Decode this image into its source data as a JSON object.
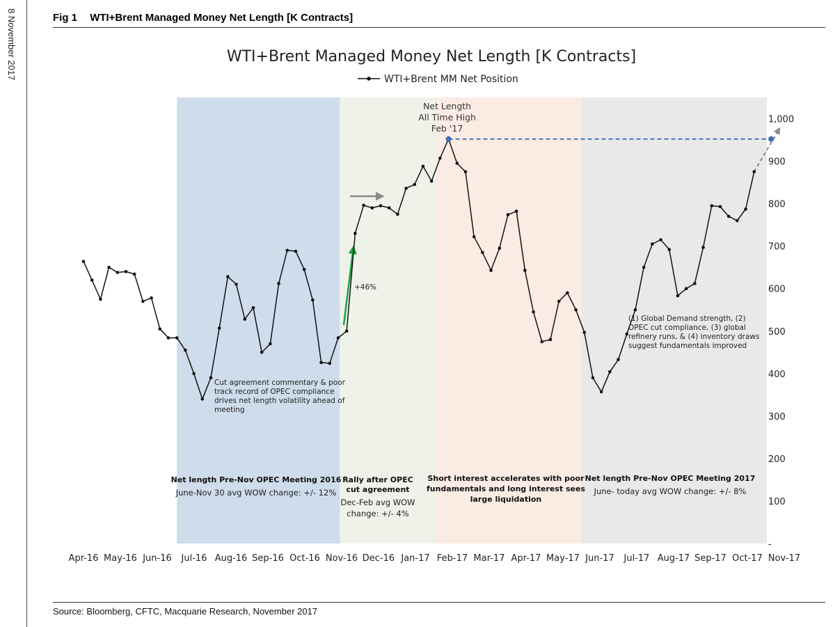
{
  "page": {
    "side_date": "8 November 2017",
    "fig_label": "Fig 1",
    "fig_title": "WTI+Brent Managed Money Net Length [K Contracts]",
    "source": "Source: Bloomberg, CFTC, Macquarie Research, November 2017"
  },
  "chart_data": {
    "type": "line",
    "title": "WTI+Brent Managed Money Net Length [K Contracts]",
    "xlabel": "",
    "ylabel": "",
    "ylim": [
      0,
      1000
    ],
    "y_ticks": [
      "-",
      "100",
      "200",
      "300",
      "400",
      "500",
      "600",
      "700",
      "800",
      "900",
      "1,000"
    ],
    "y_axis_side": "right",
    "x_tick_labels": [
      "Apr-16",
      "May-16",
      "Jun-16",
      "Jul-16",
      "Aug-16",
      "Sep-16",
      "Oct-16",
      "Nov-16",
      "Dec-16",
      "Jan-17",
      "Feb-17",
      "Mar-17",
      "Apr-17",
      "May-17",
      "Jun-17",
      "Jul-17",
      "Aug-17",
      "Sep-17",
      "Oct-17",
      "Nov-17"
    ],
    "grid": false,
    "legend": {
      "position": "top",
      "entries": [
        "WTI+Brent MM Net Position"
      ]
    },
    "series": [
      {
        "name": "WTI+Brent MM Net Position",
        "color": "#111111",
        "x_weeks": [
          0,
          1,
          2,
          3,
          4,
          5,
          6,
          7,
          8,
          9,
          10,
          11,
          12,
          13,
          14,
          15,
          16,
          17,
          18,
          19,
          20,
          21,
          22,
          23,
          24,
          25,
          26,
          27,
          28,
          29,
          30,
          31,
          32,
          33,
          34,
          35,
          36,
          37,
          38,
          39,
          40,
          41,
          42,
          43,
          44,
          45,
          46,
          47,
          48,
          49,
          50,
          51,
          52,
          53,
          54,
          55,
          56,
          57,
          58,
          59,
          60,
          61,
          62,
          63,
          64,
          65,
          66,
          67,
          68,
          69,
          70,
          71,
          72,
          73,
          74,
          75,
          76,
          77,
          78,
          79,
          80,
          81
        ],
        "values": [
          664,
          620,
          575,
          650,
          638,
          640,
          634,
          570,
          578,
          505,
          484,
          484,
          455,
          400,
          340,
          390,
          507,
          628,
          610,
          528,
          555,
          450,
          470,
          612,
          690,
          688,
          645,
          573,
          426,
          424,
          484,
          500,
          730,
          796,
          790,
          795,
          790,
          775,
          836,
          845,
          888,
          853,
          907,
          952,
          895,
          875,
          722,
          685,
          643,
          695,
          774,
          782,
          643,
          545,
          475,
          480,
          570,
          590,
          550,
          497,
          390,
          357,
          404,
          433,
          493,
          550,
          650,
          705,
          715,
          692,
          583,
          600,
          612,
          697,
          795,
          793,
          770,
          760,
          787,
          875,
          null,
          null
        ],
        "peak": {
          "week": 43,
          "value": 952,
          "label_lines": [
            "Net Length",
            "All Time High",
            "Feb '17"
          ]
        },
        "projection": {
          "from_week": 79,
          "from_value": 875,
          "to_week": 81,
          "to_value": 952
        },
        "ath_line": {
          "from_week": 43,
          "to_week": 81,
          "value": 952,
          "color": "#3f6eb5"
        }
      }
    ],
    "regions": [
      {
        "name": "pre-nov-opec-2016",
        "color": "#cfdcec",
        "title": "Net length Pre-Nov OPEC Meeting 2016",
        "lines": [
          "June-Nov 30 avg WOW change: +/- 12%"
        ]
      },
      {
        "name": "rally-after-opec",
        "color": "#eef2e9",
        "title_lines": [
          "Rally after OPEC",
          "cut agreement"
        ],
        "lines": [
          "Dec-Feb avg WOW",
          "change: +/- 4%"
        ]
      },
      {
        "name": "short-interest",
        "color": "#fbece3",
        "title_lines": [
          "Short interest accelerates with poor",
          "fundamentals and long interest sees",
          "large liquidation"
        ],
        "lines": []
      },
      {
        "name": "pre-nov-opec-2017",
        "color": "#e9e9e9",
        "title": "Net length Pre-Nov OPEC Meeting 2017",
        "lines": [
          "June- today avg WOW change: +/- 8%"
        ]
      }
    ],
    "annotations": {
      "cut_agreement": [
        "Cut agreement commentary & poor",
        "track record of OPEC compliance",
        "drives net length volatility ahead of",
        "meeting"
      ],
      "fundamentals": [
        "(1) Global Demand strength, (2)",
        "OPEC cut compliance, (3) global",
        "refinery runs, & (4) inventory draws",
        "suggest fundamentals improved"
      ],
      "jump_label": "+46%",
      "jump_arrow_color": "#1aa043",
      "grey_arrow_color": "#888888"
    }
  }
}
